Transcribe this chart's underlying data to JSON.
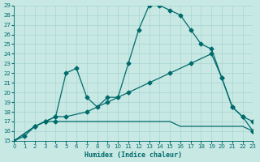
{
  "xlabel": "Humidex (Indice chaleur)",
  "background_color": "#c8e8e4",
  "grid_color": "#a8d4d0",
  "line_color": "#006b6b",
  "xlim": [
    0,
    23
  ],
  "ylim": [
    15,
    29
  ],
  "xticks": [
    0,
    1,
    2,
    3,
    4,
    5,
    6,
    7,
    8,
    9,
    10,
    11,
    12,
    13,
    14,
    15,
    16,
    17,
    18,
    19,
    20,
    21,
    22,
    23
  ],
  "yticks": [
    15,
    16,
    17,
    18,
    19,
    20,
    21,
    22,
    23,
    24,
    25,
    26,
    27,
    28,
    29
  ],
  "line1": {
    "x": [
      0,
      1,
      2,
      3,
      4,
      5,
      6,
      7,
      8,
      9,
      10,
      11,
      12,
      13,
      14,
      15,
      16,
      17,
      18,
      19,
      20,
      21,
      22,
      23
    ],
    "y": [
      15,
      15.5,
      16.5,
      17,
      17,
      17,
      17,
      17,
      17,
      17,
      17,
      17,
      17,
      17,
      17,
      17,
      16.5,
      16.5,
      16.5,
      16.5,
      16.5,
      16.5,
      16.5,
      16
    ],
    "markers_x": [
      0,
      1,
      2,
      3,
      4,
      23
    ],
    "markers_y": [
      15,
      15.5,
      16.5,
      17,
      17,
      16
    ]
  },
  "line2": {
    "x": [
      0,
      2,
      3,
      4,
      5,
      7,
      9,
      11,
      13,
      15,
      17,
      19,
      20,
      21,
      22,
      23
    ],
    "y": [
      15,
      16.5,
      17,
      17.5,
      17.5,
      18,
      19,
      20,
      21,
      22,
      23,
      24,
      21.5,
      18.5,
      17.5,
      17
    ],
    "markers_x": [
      0,
      2,
      3,
      4,
      5,
      7,
      9,
      11,
      13,
      15,
      17,
      19,
      20,
      21,
      22,
      23
    ],
    "markers_y": [
      15,
      16.5,
      17,
      17.5,
      17.5,
      18,
      19,
      20,
      21,
      22,
      23,
      24,
      21.5,
      18.5,
      17.5,
      17
    ]
  },
  "line3": {
    "x": [
      0,
      2,
      3,
      4,
      5,
      6,
      7,
      8,
      9,
      10,
      11,
      12,
      13,
      14,
      15,
      16,
      17,
      18,
      19,
      20,
      21,
      22,
      23
    ],
    "y": [
      15,
      16.5,
      17,
      17.5,
      22,
      22.5,
      19.5,
      18.5,
      19.5,
      19.5,
      23,
      26.5,
      29,
      29,
      28.5,
      28,
      26.5,
      25,
      24.5,
      21.5,
      18.5,
      17.5,
      16
    ],
    "markers_x": [
      0,
      2,
      3,
      4,
      5,
      6,
      7,
      8,
      9,
      10,
      11,
      12,
      13,
      14,
      15,
      16,
      17,
      18,
      19,
      20,
      21,
      22,
      23
    ],
    "markers_y": [
      15,
      16.5,
      17,
      17.5,
      22,
      22.5,
      19.5,
      18.5,
      19.5,
      19.5,
      23,
      26.5,
      29,
      29,
      28.5,
      28,
      26.5,
      25,
      24.5,
      21.5,
      18.5,
      17.5,
      16
    ]
  }
}
